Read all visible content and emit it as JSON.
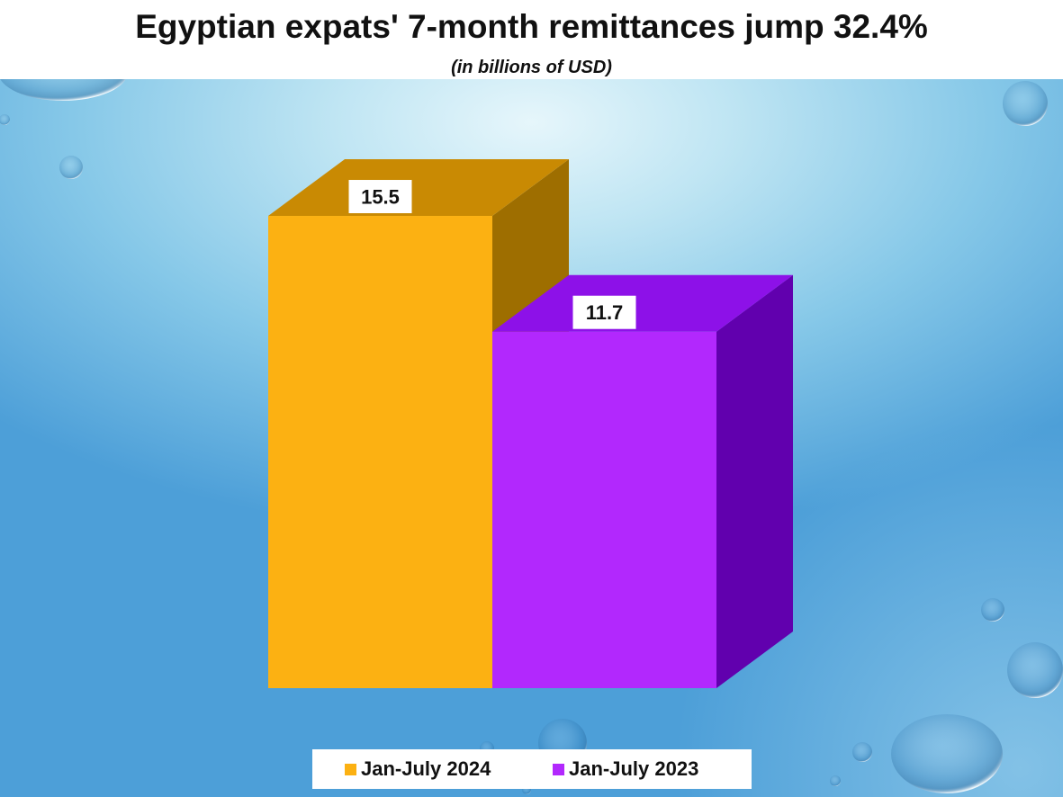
{
  "chart_data": {
    "type": "bar",
    "style": "3d",
    "title": "Egyptian expats' 7-month remittances jump 32.4%",
    "subtitle": "(in billions of USD)",
    "series": [
      {
        "name": "Jan-July 2024",
        "values": [
          15.5
        ],
        "color": "#FCB112",
        "top_color": "#C98A03",
        "side_color": "#9E6E00"
      },
      {
        "name": "Jan-July 2023",
        "values": [
          11.7
        ],
        "color": "#B228FD",
        "top_color": "#8D11E8",
        "side_color": "#6100AE"
      }
    ],
    "data_labels": true,
    "legend_position": "bottom",
    "grid": false,
    "axes_visible": false
  }
}
